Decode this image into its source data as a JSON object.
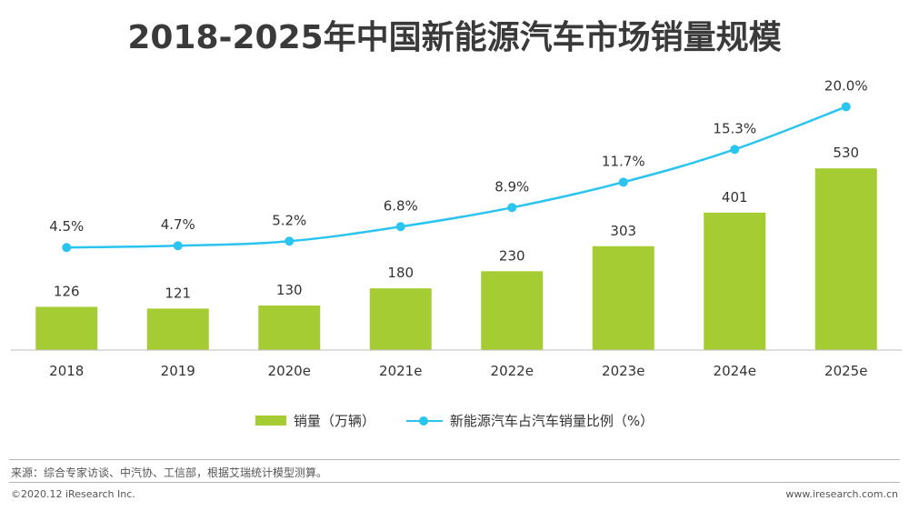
{
  "title": "2018-2025年中国新能源汽车市场销量规模",
  "chart_data": {
    "type": "bar",
    "categories": [
      "2018",
      "2019",
      "2020e",
      "2021e",
      "2022e",
      "2023e",
      "2024e",
      "2025e"
    ],
    "series": [
      {
        "name": "销量（万辆）",
        "type": "bar",
        "values": [
          126,
          121,
          130,
          180,
          230,
          303,
          401,
          530
        ],
        "labels": [
          "126",
          "121",
          "130",
          "180",
          "230",
          "303",
          "401",
          "530"
        ],
        "color": "#a6cc33"
      },
      {
        "name": "新能源汽车占汽车销量比例（%）",
        "type": "line",
        "values": [
          4.5,
          4.7,
          5.2,
          6.8,
          8.9,
          11.7,
          15.3,
          20.0
        ],
        "labels": [
          "4.5%",
          "4.7%",
          "5.2%",
          "6.8%",
          "8.9%",
          "11.7%",
          "15.3%",
          "20.0%"
        ],
        "color": "#29c4ef"
      }
    ],
    "legend_position": "bottom",
    "grid": false
  },
  "source_note": "来源：综合专家访谈、中汽协、工信部，根据艾瑞统计模型测算。",
  "footer": {
    "copyright": "©2020.12 iResearch Inc.",
    "website": "www.iresearch.com.cn"
  }
}
